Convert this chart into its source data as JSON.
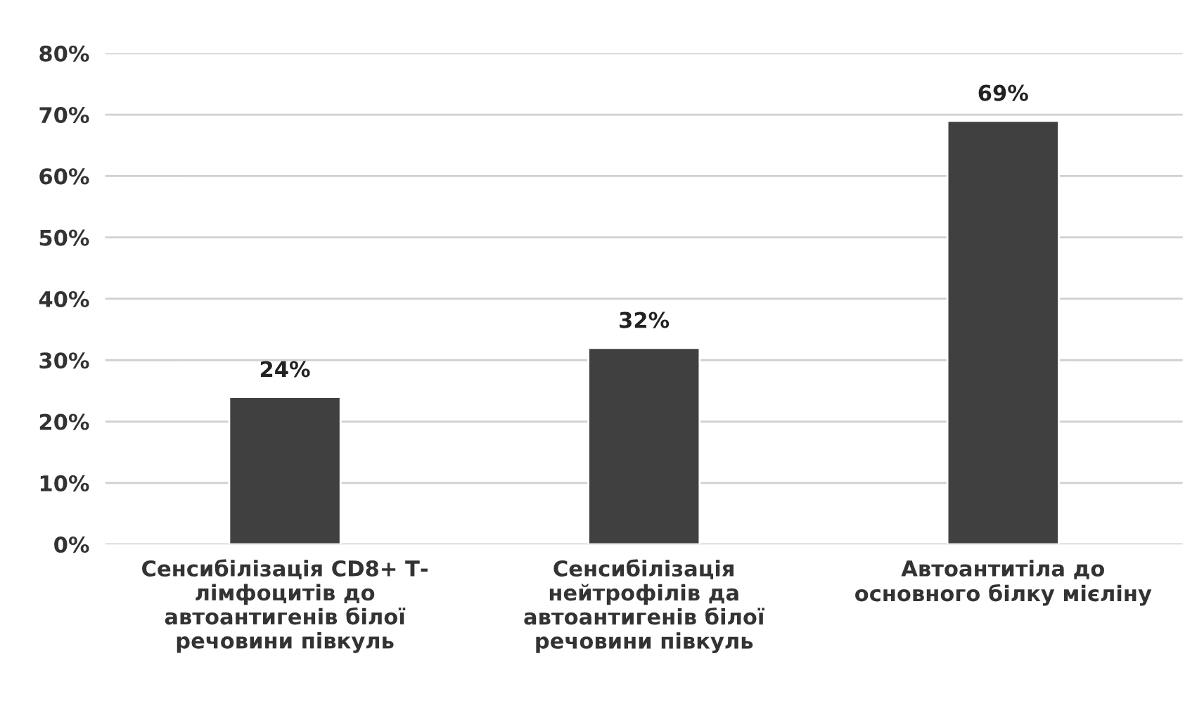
{
  "chart_data": {
    "type": "bar",
    "categories": [
      "Сенсибілізація CD8+ Т-\nлімфоцитів до\nавтоантигенів білої\nречовини півкуль",
      "Сенсибілізація\nнейтрофілів да\nавтоантигенів білої\nречовини півкуль",
      "Автоантитіла до\nосновного білку мієліну"
    ],
    "values": [
      24,
      32,
      69
    ],
    "value_labels": [
      "24%",
      "32%",
      "69%"
    ],
    "color": "#404040",
    "ylim": [
      0,
      80
    ],
    "yticks": [
      {
        "value": 0,
        "label": "0%"
      },
      {
        "value": 10,
        "label": "10%"
      },
      {
        "value": 20,
        "label": "20%"
      },
      {
        "value": 30,
        "label": "30%"
      },
      {
        "value": 40,
        "label": "40%"
      },
      {
        "value": 50,
        "label": "50%"
      },
      {
        "value": 60,
        "label": "60%"
      },
      {
        "value": 70,
        "label": "70%"
      },
      {
        "value": 80,
        "label": "80%"
      }
    ],
    "grid": "y",
    "legend": false
  }
}
